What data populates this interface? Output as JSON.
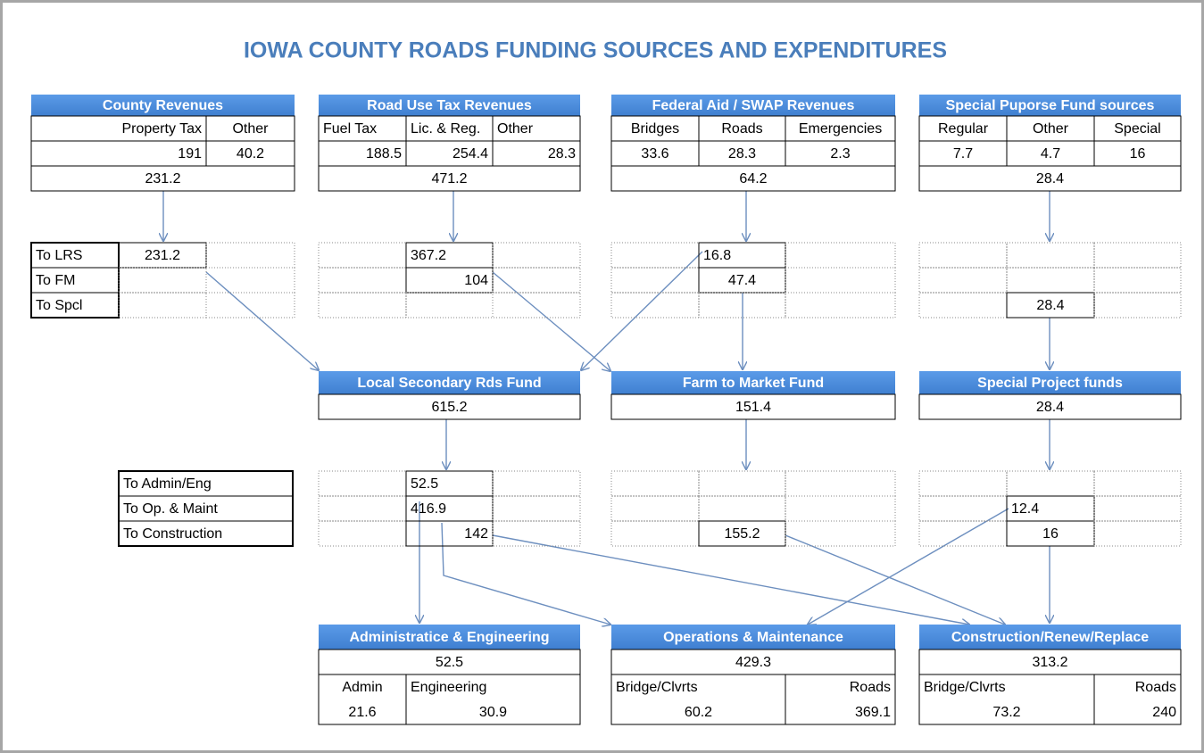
{
  "title": "IOWA COUNTY ROADS FUNDING SOURCES AND EXPENDITURES",
  "sources": [
    {
      "title": "County Revenues",
      "columns": [
        "Property Tax",
        "Other"
      ],
      "values": [
        191,
        40.2
      ],
      "total": 231.2
    },
    {
      "title": "Road Use Tax Revenues",
      "columns": [
        "Fuel Tax",
        "Lic. & Reg.",
        "Other"
      ],
      "values": [
        188.5,
        254.4,
        28.3
      ],
      "total": 471.2
    },
    {
      "title": "Federal Aid / SWAP Revenues",
      "columns": [
        "Bridges",
        "Roads",
        "Emergencies"
      ],
      "values": [
        33.6,
        28.3,
        2.3
      ],
      "total": 64.2
    },
    {
      "title": "Special Puporse Fund sources",
      "columns": [
        "Regular",
        "Other",
        "Special"
      ],
      "values": [
        7.7,
        4.7,
        16
      ],
      "total": 28.4
    }
  ],
  "source_allocations": {
    "rows": [
      "To LRS",
      "To FM",
      "To Spcl"
    ],
    "groups": [
      [
        [
          231.2,
          null
        ],
        [
          null,
          null
        ],
        [
          null,
          null
        ]
      ],
      [
        [
          null,
          367.2,
          null
        ],
        [
          null,
          104,
          null
        ],
        [
          null,
          null,
          null
        ]
      ],
      [
        [
          null,
          16.8,
          null
        ],
        [
          null,
          47.4,
          null
        ],
        [
          null,
          null,
          null
        ]
      ],
      [
        [
          null,
          null,
          null
        ],
        [
          null,
          null,
          null
        ],
        [
          null,
          28.4,
          null
        ]
      ]
    ]
  },
  "funds": [
    {
      "title": "Local Secondary Rds Fund",
      "total": 615.2
    },
    {
      "title": "Farm to Market Fund",
      "total": 151.4
    },
    {
      "title": "Special Project funds",
      "total": 28.4
    }
  ],
  "fund_allocations": {
    "rows": [
      "To Admin/Eng",
      "To Op. & Maint",
      "To Construction"
    ],
    "groups": [
      [
        [
          null,
          52.5,
          null
        ],
        [
          null,
          416.9,
          null
        ],
        [
          null,
          142,
          null
        ]
      ],
      [
        [
          null,
          null,
          null
        ],
        [
          null,
          null,
          null
        ],
        [
          null,
          155.2,
          null
        ]
      ],
      [
        [
          null,
          null,
          null
        ],
        [
          null,
          12.4,
          null
        ],
        [
          null,
          16,
          null
        ]
      ]
    ]
  },
  "expenditures": [
    {
      "title": "Administratice & Engineering",
      "total": 52.5,
      "columns": [
        "Admin",
        "Engineering"
      ],
      "values": [
        21.6,
        30.9
      ]
    },
    {
      "title": "Operations & Maintenance",
      "total": 429.3,
      "columns": [
        "Bridge/Clvrts",
        "Roads"
      ],
      "values": [
        60.2,
        369.1
      ]
    },
    {
      "title": "Construction/Renew/Replace",
      "total": 313.2,
      "columns": [
        "Bridge/Clvrts",
        "Roads"
      ],
      "values": [
        73.2,
        240
      ]
    }
  ]
}
